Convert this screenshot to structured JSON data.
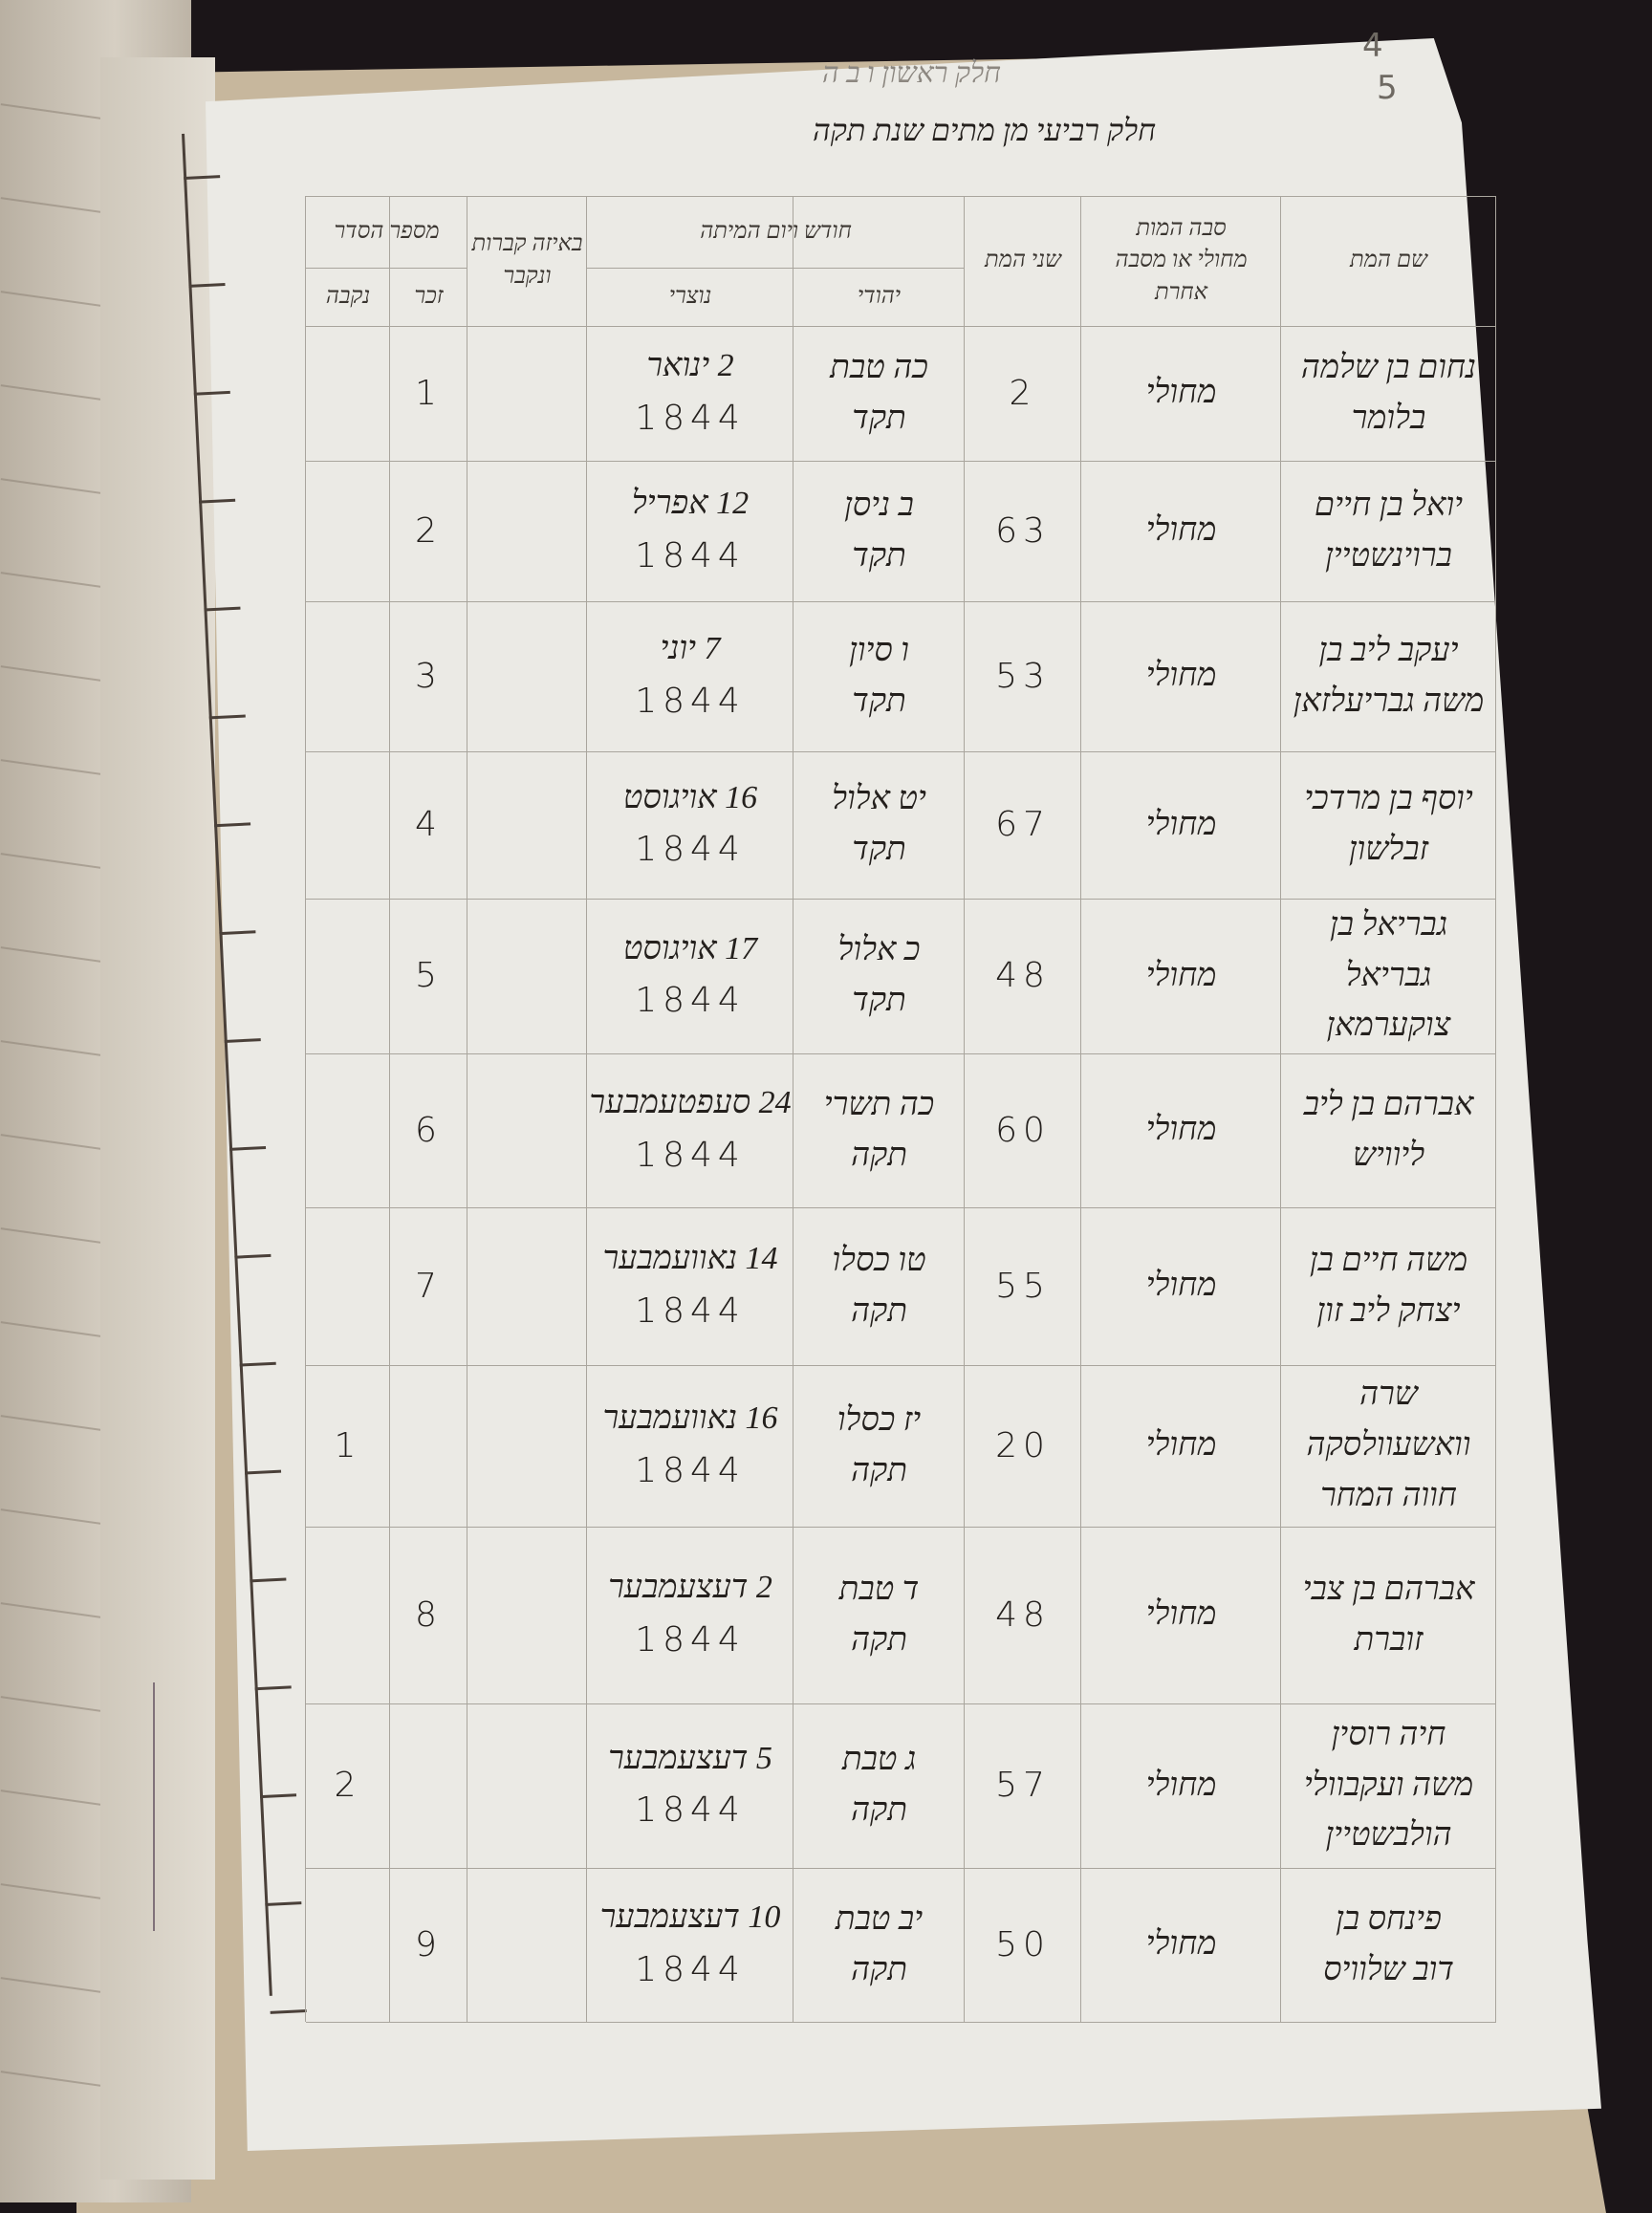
{
  "page": {
    "title_line1": "חלק ראשון ו ב ה",
    "title_line2": "חלק רביעי מן מתים שנת תקה",
    "page_number_old": "4",
    "page_number": "5"
  },
  "table": {
    "headers": {
      "name": "שם המת",
      "cause": [
        "סבה המות",
        "מחולי או מסבה",
        "אחרת"
      ],
      "age": "שני המת",
      "date_group": "חודש ויום המיתה",
      "date_jewish": "יהודי",
      "date_civil": "נוצרי",
      "burial": [
        "באיזה קברות",
        "ונקבר"
      ],
      "serial_group": "מספר הסדר",
      "serial_male": "זכר",
      "serial_female": "נקבה"
    },
    "rows": [
      {
        "name": [
          "נחום בן שלמה",
          "בלומר"
        ],
        "cause": "מחולי",
        "age": "2",
        "jewish": [
          "כה טבת",
          "תקד"
        ],
        "civil": [
          "2 ינואר",
          "1844"
        ],
        "male": "1",
        "female": ""
      },
      {
        "name": [
          "יואל בן חיים",
          "ברוינשטיין"
        ],
        "cause": "מחולי",
        "age": "63",
        "jewish": [
          "ב ניסן",
          "תקד"
        ],
        "civil": [
          "12 אפריל",
          "1844"
        ],
        "male": "2",
        "female": ""
      },
      {
        "name": [
          "יעקב ליב בן",
          "משה גבריעלזאן"
        ],
        "cause": "מחולי",
        "age": "53",
        "jewish": [
          "ו סיון",
          "תקד"
        ],
        "civil": [
          "7 יוני",
          "1844"
        ],
        "male": "3",
        "female": ""
      },
      {
        "name": [
          "יוסף בן מרדכי",
          "זבלשון"
        ],
        "cause": "מחולי",
        "age": "67",
        "jewish": [
          "יט אלול",
          "תקד"
        ],
        "civil": [
          "16 אויגוסט",
          "1844"
        ],
        "male": "4",
        "female": ""
      },
      {
        "name": [
          "גבריאל בן",
          "גבריאל צוקערמאן"
        ],
        "cause": "מחולי",
        "age": "48",
        "jewish": [
          "כ אלול",
          "תקד"
        ],
        "civil": [
          "17 אויגוסט",
          "1844"
        ],
        "male": "5",
        "female": ""
      },
      {
        "name": [
          "אברהם בן ליב",
          "ליוויש"
        ],
        "cause": "מחולי",
        "age": "60",
        "jewish": [
          "כה תשרי",
          "תקה"
        ],
        "civil": [
          "24 סעפטעמבער",
          "1844"
        ],
        "male": "6",
        "female": ""
      },
      {
        "name": [
          "משה חיים בן",
          "יצחק ליב זון"
        ],
        "cause": "מחולי",
        "age": "55",
        "jewish": [
          "טו כסלו",
          "תקה"
        ],
        "civil": [
          "14 נאוועמבער",
          "1844"
        ],
        "male": "7",
        "female": ""
      },
      {
        "name": [
          "שרה וואשעוולסקה",
          "חווה המחר"
        ],
        "cause": "מחולי",
        "age": "20",
        "jewish": [
          "יז כסלו",
          "תקה"
        ],
        "civil": [
          "16 נאוועמבער",
          "1844"
        ],
        "male": "",
        "female": "1"
      },
      {
        "name": [
          "אברהם בן צבי",
          "זוברת"
        ],
        "cause": "מחולי",
        "age": "48",
        "jewish": [
          "ד טבת",
          "תקה"
        ],
        "civil": [
          "2 דעצעמבער",
          "1844"
        ],
        "male": "8",
        "female": ""
      },
      {
        "name": [
          "חיה רוסין",
          "משה ועקבוולי",
          "הולבשטיין"
        ],
        "cause": "מחולי",
        "age": "57",
        "jewish": [
          "ג טבת",
          "תקה"
        ],
        "civil": [
          "5 דעצעמבער",
          "1844"
        ],
        "male": "",
        "female": "2"
      },
      {
        "name": [
          "פינחס בן",
          "דוב שלוויס"
        ],
        "cause": "מחולי",
        "age": "50",
        "jewish": [
          "יב טבת",
          "תקה"
        ],
        "civil": [
          "10 דעצעמבער",
          "1844"
        ],
        "male": "9",
        "female": ""
      }
    ]
  },
  "colors": {
    "paper": "#ebeae5",
    "ink": "#24201d",
    "grid": "#a9a59d",
    "board": "#c7b79d",
    "background": "#1b1518"
  }
}
